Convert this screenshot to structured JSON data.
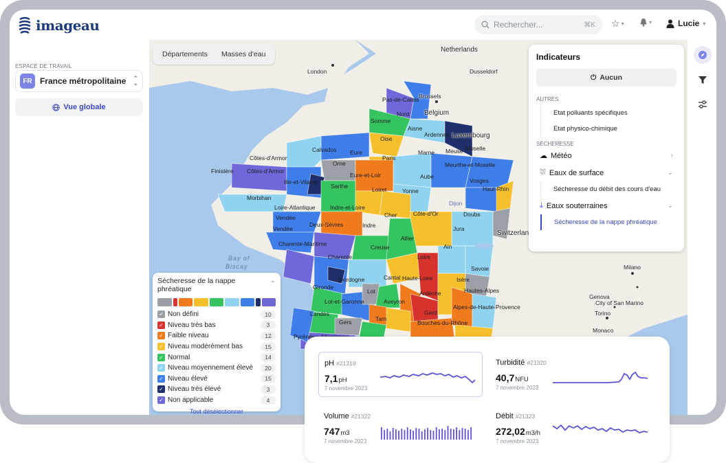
{
  "app": {
    "brand": "imageau"
  },
  "header": {
    "search_placeholder": "Rechercher...",
    "search_shortcut": "⌘K",
    "user_name": "Lucie"
  },
  "sidebar": {
    "workspace_label": "ESPACE DE TRAVAIL",
    "workspace_code": "FR",
    "workspace_name": "France métropolitaine",
    "global_view": "Vue globale"
  },
  "map": {
    "tabs": [
      "Départements",
      "Masses d'eau"
    ],
    "countries": [
      "Netherlands",
      "Belgium",
      "Luxembourg",
      "Switzerland"
    ],
    "cities": [
      "London",
      "Brussels",
      "Dusseldorf",
      "Milano",
      "Torino",
      "Genova",
      "Monaco",
      "City of San Marino"
    ],
    "sea": [
      "Bay of",
      "Biscay"
    ],
    "departments": [
      "Pas-de-Calais",
      "Nord",
      "Somme",
      "Aisne",
      "Ardennes",
      "Oise",
      "Calvados",
      "Eure",
      "Côtes-d'Armor",
      "Finistère",
      "Côtes-d'Armor",
      "Orne",
      "Paris",
      "Marne",
      "Meuse",
      "Moselle",
      "Meurthe-et-Moselle",
      "Ille-et-Vilaine",
      "Eure-et-Loir",
      "Aube",
      "Vosges",
      "Haut-Rhin",
      "Morbihan",
      "Sarthe",
      "Loiret",
      "Yonne",
      "Loire-Atlantique",
      "Indre-et-Loire",
      "Côte-d'Or",
      "Doubs",
      "Vendée",
      "Deux-Sèvres",
      "Indre",
      "Cher",
      "Jura",
      "Vendée",
      "Charente-Maritime",
      "Allier",
      "Ain",
      "Creuse",
      "Charente",
      "Loire",
      "Savoie",
      "Cantal",
      "Haute-Loire",
      "Isère",
      "Gironde",
      "Dordogne",
      "Lot",
      "Ardèche",
      "Hautes-Alpes",
      "Lot-et-Garonne",
      "Aveyron",
      "Alpes-de-Haute-Provence",
      "Landes",
      "Gers",
      "Tarn",
      "Gard",
      "Bouches-du-Rhône",
      "Pyrénées-Atlantiques",
      "Dijon"
    ]
  },
  "legend": {
    "title": "Sécheresse de la nappe phréatique",
    "items": [
      {
        "label": "Non défini",
        "count": "10",
        "color": "#9aa0a6"
      },
      {
        "label": "Niveau très bas",
        "count": "3",
        "color": "#d6322e"
      },
      {
        "label": "Faible niveau",
        "count": "12",
        "color": "#f07b1c"
      },
      {
        "label": "Niveau modérément bas",
        "count": "15",
        "color": "#f6c02c"
      },
      {
        "label": "Normal",
        "count": "14",
        "color": "#35c45f"
      },
      {
        "label": "Niveau moyennement élevé",
        "count": "20",
        "color": "#8fd3f0"
      },
      {
        "label": "Niveau élevé",
        "count": "15",
        "color": "#3f7ee8"
      },
      {
        "label": "Niveau très élevé",
        "count": "3",
        "color": "#1f2f6b"
      },
      {
        "label": "Non applicable",
        "count": "4",
        "color": "#7068d8"
      }
    ],
    "deselect": "Tout désélectionner"
  },
  "indicators": {
    "title": "Indicateurs",
    "none": "Aucun",
    "section_other": "AUTRES",
    "other_items": [
      "Etat polluants spécifiques",
      "Etat physico-chimique"
    ],
    "section_drought": "SÉCHERESSE",
    "groups": {
      "meteo": "Météo",
      "surface": "Eaux de surface",
      "surface_item": "Sécheresse du débit des cours d'eau",
      "ground": "Eaux souterraines",
      "ground_item": "Sécheresse de la nappe phréatique"
    }
  },
  "metrics": [
    {
      "name": "pH",
      "id": "#21319",
      "value": "7,1",
      "unit": "pH",
      "date": "7 novembre 2023"
    },
    {
      "name": "Turbidité",
      "id": "#21320",
      "value": "40,7",
      "unit": "NFU",
      "date": "7 novembre 2023"
    },
    {
      "name": "Volume",
      "id": "#21322",
      "value": "747",
      "unit": "m3",
      "date": "7 novembre 2023"
    },
    {
      "name": "Débit",
      "id": "#21323",
      "value": "272,02",
      "unit": "m3/h",
      "date": "7 novembre 2023"
    }
  ]
}
